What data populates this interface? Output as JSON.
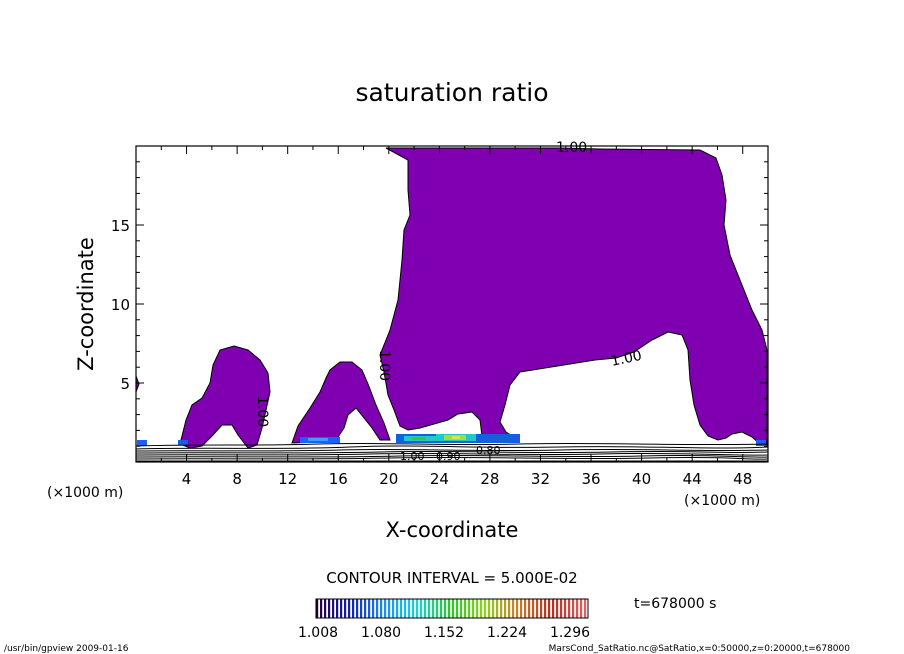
{
  "chart_data": {
    "type": "contour",
    "title": "saturation ratio",
    "xlabel": "X-coordinate",
    "ylabel": "Z-coordinate",
    "x_unit": "(×1000 m)",
    "xlim": [
      0,
      50
    ],
    "ylim": [
      0,
      20
    ],
    "x_ticks": [
      4,
      8,
      12,
      16,
      20,
      24,
      28,
      32,
      36,
      40,
      44,
      48
    ],
    "y_ticks": [
      5,
      10,
      15
    ],
    "contour_labels": [
      "1.00",
      "1.00",
      "1.00",
      "1.00",
      "1.00",
      "0.90",
      "0.80"
    ],
    "contour_interval": "CONTOUR INTERVAL = 5.000E-02",
    "colorbar_ticks": [
      "1.008",
      "1.080",
      "1.152",
      "1.224",
      "1.296"
    ],
    "time_label": "t=678000 s",
    "fill_color": "#7F00B0",
    "colorbar_colors": [
      "#2a0033",
      "#1020b0",
      "#1a8cff",
      "#20d0d0",
      "#30c030",
      "#90d020",
      "#c08030",
      "#b03020",
      "#e06060"
    ]
  },
  "footer": {
    "left": "/usr/bin/gpview   2009-01-16",
    "right": "MarsCond_SatRatio.nc@SatRatio,x=0:50000,z=0:20000,t=678000"
  }
}
